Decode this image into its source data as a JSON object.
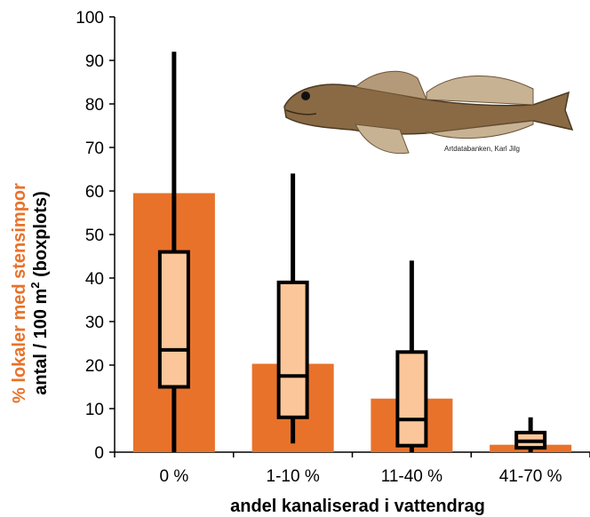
{
  "colors": {
    "bar": "#E8722A",
    "box": "#FBC79A",
    "ylabel_primary": "#E8722A",
    "axis": "#000000"
  },
  "image": {
    "icon": "fish-stensimpa-photo",
    "credit": "Artdatabanken, Karl Jilg"
  },
  "chart_data": {
    "type": "bar",
    "xlabel": "andel kanaliserad i vattendrag",
    "ylabel_primary": "% lokaler med stensimpor",
    "ylabel_secondary_prefix": "antal / 100 m",
    "ylabel_secondary_sup": "2",
    "ylabel_secondary_suffix": " (boxplots)",
    "ylim": [
      0,
      100
    ],
    "yticks": [
      0,
      10,
      20,
      30,
      40,
      50,
      60,
      70,
      80,
      90,
      100
    ],
    "grid": false,
    "categories": [
      "0 %",
      "1-10 %",
      "11-40 %",
      "41-70 %"
    ],
    "bar_values": [
      59.5,
      20.3,
      12.3,
      1.7
    ],
    "boxplots": [
      {
        "min": 0,
        "q1": 15,
        "median": 23.5,
        "q3": 46,
        "max": 92
      },
      {
        "min": 2,
        "q1": 8,
        "median": 17.5,
        "q3": 39,
        "max": 64
      },
      {
        "min": 0,
        "q1": 1.5,
        "median": 7.5,
        "q3": 23,
        "max": 44
      },
      {
        "min": 0,
        "q1": 1,
        "median": 2.5,
        "q3": 4.5,
        "max": 8
      }
    ]
  }
}
